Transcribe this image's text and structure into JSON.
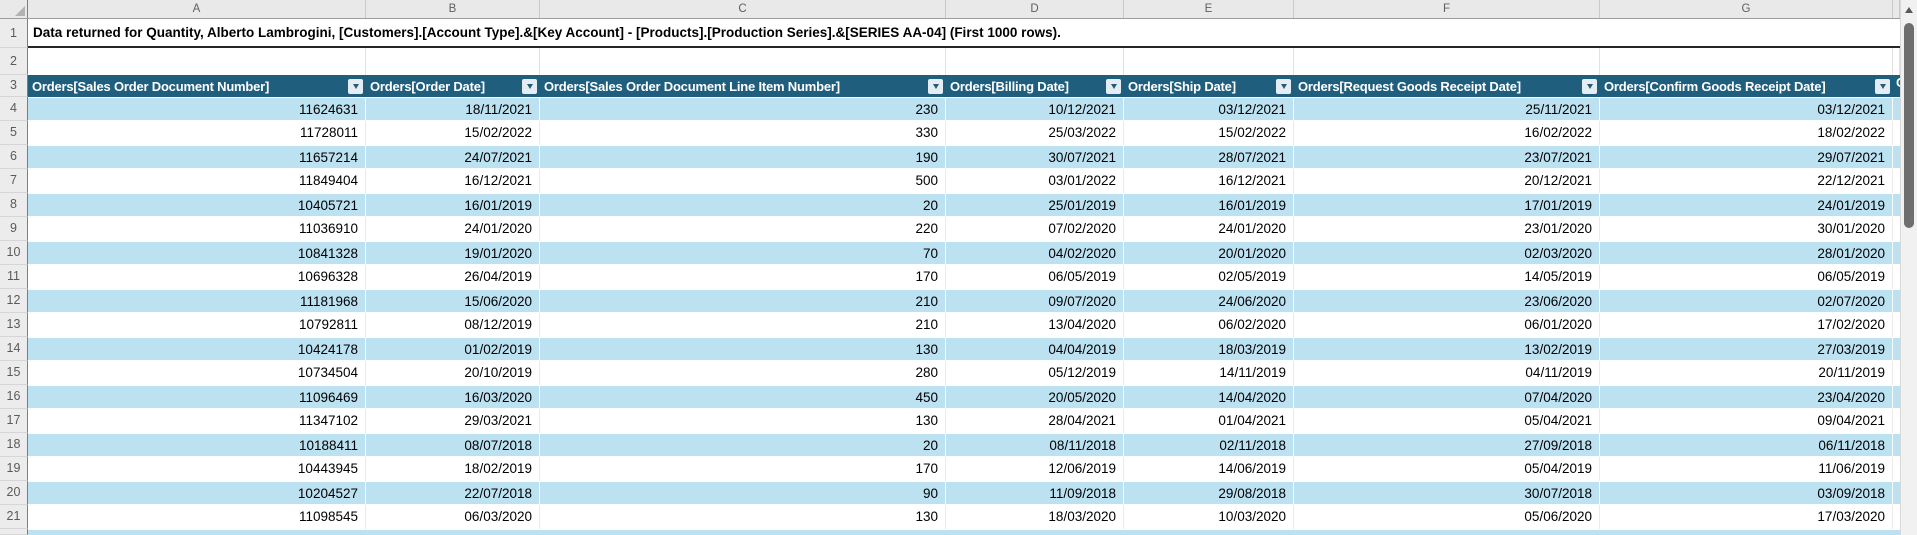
{
  "colors": {
    "header_bg": "#205E7D",
    "band_blue": "#BCE1F1",
    "header_text": "#FFFFFF",
    "gutter_bg": "#ECECEC"
  },
  "grid": {
    "column_letters": [
      "A",
      "B",
      "C",
      "D",
      "E",
      "F",
      "G"
    ],
    "title_row_number": "1",
    "empty_row_number": "2",
    "header_row_number": "3",
    "title": "Data returned for Quantity, Alberto Lambrogini, [Customers].[Account Type].&[Key Account] - [Products].[Production Series].&[SERIES AA-04] (First 1000 rows).",
    "table_headers": [
      "Orders[Sales Order Document Number]",
      "Orders[Order Date]",
      "Orders[Sales Order Document Line Item Number]",
      "Orders[Billing Date]",
      "Orders[Ship Date]",
      "Orders[Request Goods Receipt Date]",
      "Orders[Confirm Goods Receipt Date]"
    ],
    "partial_next_header": "O",
    "rows": [
      {
        "n": "4",
        "cells": [
          "11624631",
          "18/11/2021",
          "230",
          "10/12/2021",
          "03/12/2021",
          "25/11/2021",
          "03/12/2021"
        ]
      },
      {
        "n": "5",
        "cells": [
          "11728011",
          "15/02/2022",
          "330",
          "25/03/2022",
          "15/02/2022",
          "16/02/2022",
          "18/02/2022"
        ]
      },
      {
        "n": "6",
        "cells": [
          "11657214",
          "24/07/2021",
          "190",
          "30/07/2021",
          "28/07/2021",
          "23/07/2021",
          "29/07/2021"
        ]
      },
      {
        "n": "7",
        "cells": [
          "11849404",
          "16/12/2021",
          "500",
          "03/01/2022",
          "16/12/2021",
          "20/12/2021",
          "22/12/2021"
        ]
      },
      {
        "n": "8",
        "cells": [
          "10405721",
          "16/01/2019",
          "20",
          "25/01/2019",
          "16/01/2019",
          "17/01/2019",
          "24/01/2019"
        ]
      },
      {
        "n": "9",
        "cells": [
          "11036910",
          "24/01/2020",
          "220",
          "07/02/2020",
          "24/01/2020",
          "23/01/2020",
          "30/01/2020"
        ]
      },
      {
        "n": "10",
        "cells": [
          "10841328",
          "19/01/2020",
          "70",
          "04/02/2020",
          "20/01/2020",
          "02/03/2020",
          "28/01/2020"
        ]
      },
      {
        "n": "11",
        "cells": [
          "10696328",
          "26/04/2019",
          "170",
          "06/05/2019",
          "02/05/2019",
          "14/05/2019",
          "06/05/2019"
        ]
      },
      {
        "n": "12",
        "cells": [
          "11181968",
          "15/06/2020",
          "210",
          "09/07/2020",
          "24/06/2020",
          "23/06/2020",
          "02/07/2020"
        ]
      },
      {
        "n": "13",
        "cells": [
          "10792811",
          "08/12/2019",
          "210",
          "13/04/2020",
          "06/02/2020",
          "06/01/2020",
          "17/02/2020"
        ]
      },
      {
        "n": "14",
        "cells": [
          "10424178",
          "01/02/2019",
          "130",
          "04/04/2019",
          "18/03/2019",
          "13/02/2019",
          "27/03/2019"
        ]
      },
      {
        "n": "15",
        "cells": [
          "10734504",
          "20/10/2019",
          "280",
          "05/12/2019",
          "14/11/2019",
          "04/11/2019",
          "20/11/2019"
        ]
      },
      {
        "n": "16",
        "cells": [
          "11096469",
          "16/03/2020",
          "450",
          "20/05/2020",
          "14/04/2020",
          "07/04/2020",
          "23/04/2020"
        ]
      },
      {
        "n": "17",
        "cells": [
          "11347102",
          "29/03/2021",
          "130",
          "28/04/2021",
          "01/04/2021",
          "05/04/2021",
          "09/04/2021"
        ]
      },
      {
        "n": "18",
        "cells": [
          "10188411",
          "08/07/2018",
          "20",
          "08/11/2018",
          "02/11/2018",
          "27/09/2018",
          "06/11/2018"
        ]
      },
      {
        "n": "19",
        "cells": [
          "10443945",
          "18/02/2019",
          "170",
          "12/06/2019",
          "14/06/2019",
          "05/04/2019",
          "11/06/2019"
        ]
      },
      {
        "n": "20",
        "cells": [
          "10204527",
          "22/07/2018",
          "90",
          "11/09/2018",
          "29/08/2018",
          "30/07/2018",
          "03/09/2018"
        ]
      },
      {
        "n": "21",
        "cells": [
          "11098545",
          "06/03/2020",
          "130",
          "18/03/2020",
          "10/03/2020",
          "05/06/2020",
          "17/03/2020"
        ]
      }
    ]
  }
}
